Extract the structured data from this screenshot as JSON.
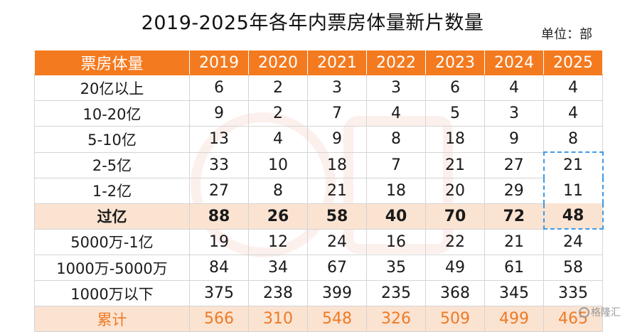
{
  "title": "2019-2025年各年内票房体量新片数量",
  "unit": "单位：部",
  "watermark_icon": "gelonghui-watermark-icon",
  "brand": "格隆汇",
  "table": {
    "header": [
      "票房体量",
      "2019",
      "2020",
      "2021",
      "2022",
      "2023",
      "2024",
      "2025"
    ],
    "rows": [
      {
        "label": "20亿以上",
        "values": [
          "6",
          "2",
          "3",
          "3",
          "6",
          "4",
          "4"
        ]
      },
      {
        "label": "10-20亿",
        "values": [
          "9",
          "2",
          "7",
          "4",
          "5",
          "3",
          "4"
        ]
      },
      {
        "label": "5-10亿",
        "values": [
          "13",
          "4",
          "9",
          "8",
          "18",
          "9",
          "8"
        ]
      },
      {
        "label": "2-5亿",
        "values": [
          "33",
          "10",
          "18",
          "7",
          "21",
          "27",
          "21"
        ]
      },
      {
        "label": "1-2亿",
        "values": [
          "27",
          "8",
          "21",
          "18",
          "20",
          "29",
          "11"
        ]
      },
      {
        "label": "过亿",
        "values": [
          "88",
          "26",
          "58",
          "40",
          "70",
          "72",
          "48"
        ]
      },
      {
        "label": "5000万-1亿",
        "values": [
          "19",
          "12",
          "24",
          "16",
          "22",
          "21",
          "24"
        ]
      },
      {
        "label": "1000万-5000万",
        "values": [
          "84",
          "34",
          "67",
          "35",
          "49",
          "61",
          "58"
        ]
      },
      {
        "label": "1000万以下",
        "values": [
          "375",
          "238",
          "399",
          "235",
          "368",
          "345",
          "335"
        ]
      },
      {
        "label": "累计",
        "values": [
          "566",
          "310",
          "548",
          "326",
          "509",
          "499",
          "465"
        ]
      }
    ]
  },
  "colors": {
    "header_bg": "#f47a1f",
    "highlight_bg": "#fbe3d2",
    "total_text": "#ee7a24",
    "dashed_box": "#3f9ae6"
  }
}
